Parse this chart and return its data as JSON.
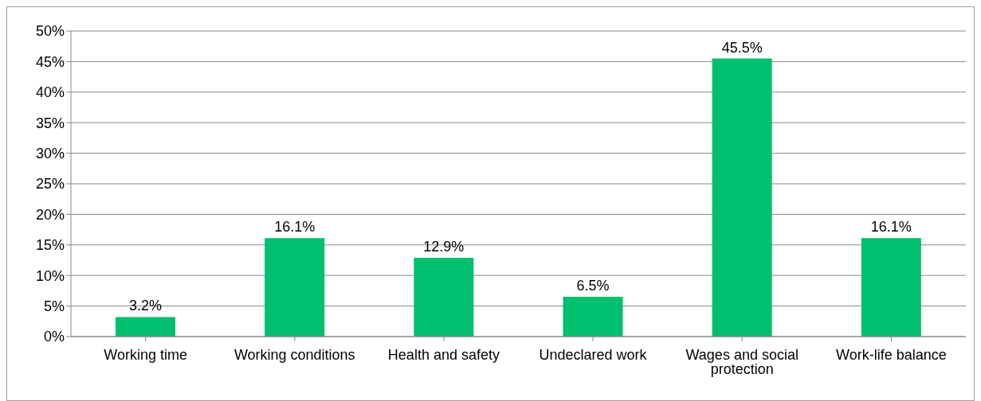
{
  "chart_data": {
    "type": "bar",
    "categories": [
      "Working time",
      "Working conditions",
      "Health and safety",
      "Undeclared work",
      "Wages and social protection",
      "Work-life balance"
    ],
    "values": [
      3.2,
      16.1,
      12.9,
      6.5,
      45.5,
      16.1
    ],
    "value_labels": [
      "3.2%",
      "16.1%",
      "12.9%",
      "6.5%",
      "45.5%",
      "16.1%"
    ],
    "color": "#00bf6f",
    "ylim": [
      0,
      50
    ],
    "yticks": [
      {
        "value": 0,
        "label": "0%"
      },
      {
        "value": 5,
        "label": "5%"
      },
      {
        "value": 10,
        "label": "10%"
      },
      {
        "value": 15,
        "label": "15%"
      },
      {
        "value": 20,
        "label": "20%"
      },
      {
        "value": 25,
        "label": "25%"
      },
      {
        "value": 30,
        "label": "30%"
      },
      {
        "value": 35,
        "label": "35%"
      },
      {
        "value": 40,
        "label": "40%"
      },
      {
        "value": 45,
        "label": "45%"
      },
      {
        "value": 50,
        "label": "50%"
      }
    ],
    "grid": "y",
    "legend": false
  }
}
